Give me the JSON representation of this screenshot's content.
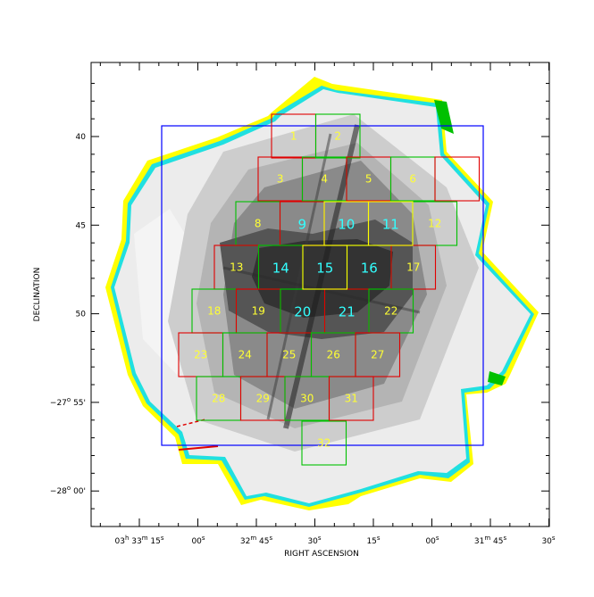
{
  "axes": {
    "xlabel": "RIGHT ASCENSION",
    "ylabel": "DECLINATION",
    "dec_ticks": [
      {
        "value": "40",
        "label": "40",
        "sup": ""
      },
      {
        "value": "45",
        "label": "45",
        "sup": ""
      },
      {
        "value": "50",
        "label": "50",
        "sup": ""
      },
      {
        "value": "55",
        "label": "−27",
        "sup": "o",
        "rest": " 55'"
      },
      {
        "value": "60",
        "label": "−28",
        "sup": "o",
        "rest": " 00'"
      }
    ],
    "ra_ticks": [
      {
        "label": "03",
        "sup1": "h",
        "mid": " 33",
        "sup2": "m",
        "rest": " 15",
        "sup3": "s"
      },
      {
        "label": "00",
        "sup3": "s"
      },
      {
        "label": "32",
        "sup2": "m",
        "rest": " 45",
        "sup3": "s"
      },
      {
        "label": "30",
        "sup3": "s"
      },
      {
        "label": "15",
        "sup3": "s"
      },
      {
        "label": "00",
        "sup3": "s"
      },
      {
        "label": "31",
        "sup2": "m",
        "rest": " 45",
        "sup3": "s"
      },
      {
        "label": "30",
        "sup3": "s"
      }
    ]
  },
  "tiles": [
    {
      "id": "1",
      "border": "red",
      "label_color": "yellow"
    },
    {
      "id": "2",
      "border": "green",
      "label_color": "yellow"
    },
    {
      "id": "3",
      "border": "red",
      "label_color": "yellow"
    },
    {
      "id": "4",
      "border": "green",
      "label_color": "yellow"
    },
    {
      "id": "5",
      "border": "red",
      "label_color": "yellow"
    },
    {
      "id": "6",
      "border": "green",
      "label_color": "yellow"
    },
    {
      "id": "",
      "border": "red",
      "label_color": "yellow"
    },
    {
      "id": "8",
      "border": "green",
      "label_color": "yellow"
    },
    {
      "id": "9",
      "border": "red",
      "label_color": "cyan"
    },
    {
      "id": "10",
      "border": "yellow",
      "label_color": "cyan"
    },
    {
      "id": "11",
      "border": "yellow",
      "label_color": "cyan"
    },
    {
      "id": "12",
      "border": "green",
      "label_color": "yellow"
    },
    {
      "id": "13",
      "border": "red",
      "label_color": "yellow"
    },
    {
      "id": "14",
      "border": "green",
      "label_color": "cyan"
    },
    {
      "id": "15",
      "border": "yellow",
      "label_color": "cyan"
    },
    {
      "id": "16",
      "border": "green",
      "label_color": "cyan"
    },
    {
      "id": "17",
      "border": "red",
      "label_color": "yellow"
    },
    {
      "id": "18",
      "border": "green",
      "label_color": "yellow"
    },
    {
      "id": "19",
      "border": "red",
      "label_color": "yellow"
    },
    {
      "id": "20",
      "border": "green",
      "label_color": "cyan"
    },
    {
      "id": "21",
      "border": "red",
      "label_color": "cyan"
    },
    {
      "id": "22",
      "border": "green",
      "label_color": "yellow"
    },
    {
      "id": "23",
      "border": "red",
      "label_color": "yellow"
    },
    {
      "id": "24",
      "border": "green",
      "label_color": "yellow"
    },
    {
      "id": "25",
      "border": "red",
      "label_color": "yellow"
    },
    {
      "id": "26",
      "border": "green",
      "label_color": "yellow"
    },
    {
      "id": "27",
      "border": "red",
      "label_color": "yellow"
    },
    {
      "id": "28",
      "border": "green",
      "label_color": "yellow"
    },
    {
      "id": "29",
      "border": "red",
      "label_color": "yellow"
    },
    {
      "id": "30",
      "border": "green",
      "label_color": "yellow"
    },
    {
      "id": "31",
      "border": "red",
      "label_color": "yellow"
    },
    {
      "id": "32",
      "border": "green",
      "label_color": "yellow"
    }
  ],
  "colors": {
    "frame": "#000000",
    "outline_box": "#0000ff",
    "red": "#e00000",
    "green": "#00c000",
    "yellow": "#ffff00",
    "label_yellow": "#ffff33",
    "label_cyan": "#33ffff",
    "coverage_deep": "#3a3a3a",
    "coverage_light": "#e8e8e8"
  }
}
